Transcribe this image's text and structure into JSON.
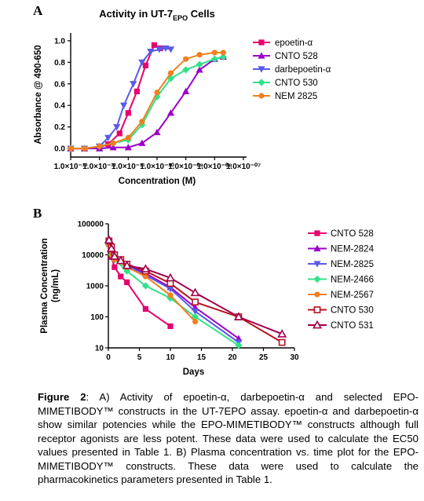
{
  "panel_a": {
    "letter": "A",
    "title_main": "Activity in UT-7",
    "title_sub": "EPO",
    "title_tail": " Cells"
  },
  "panel_b": {
    "letter": "B"
  },
  "caption": {
    "figure_label": "Figure 2",
    "text": ": A) Activity of epoetin-α, darbepoetin-α and selected EPO-MIMETIBODY™ constructs in the UT-7EPO assay. epoetin-α and darbepoetin-α show similar potencies while the EPO-MIMETIBODY™ constructs although full receptor agonists are less potent. These data were used to calculate the EC50 values presented in Table 1. B) Plasma concentration vs. time plot for the EPO-MIMETIBODY™ constructs. These data were used to calculate the pharmacokinetics parameters presented in Table 1."
  },
  "chart_data": [
    {
      "type": "line",
      "title": "Activity in UT-7EPO Cells",
      "xlabel": "Concentration (M)",
      "ylabel": "Absorbance @ 490-650",
      "xscale": "log",
      "xlim": [
        1e-13,
        1e-07
      ],
      "ylim": [
        -0.05,
        1.05
      ],
      "x_ticks": [
        "1.0×10⁻¹³",
        "1.0×10⁻¹²",
        "1.0×10⁻¹¹",
        "1.0×10⁻¹⁰",
        "1.0×10⁻⁰⁹",
        "1.0×10⁻⁰⁸",
        "1.0×10⁻⁰⁷"
      ],
      "y_ticks": [
        "0.0",
        "0.2",
        "0.4",
        "0.6",
        "0.8",
        "1.0"
      ],
      "legend_position": "top-right",
      "colors": {
        "epoetin": "#e6006e",
        "cnto528": "#9a00c8",
        "darbepoetin": "#5a5ae6",
        "cnto530": "#33e08a",
        "nem2825": "#f08020"
      },
      "series": [
        {
          "name": "epoetin-α",
          "key": "epoetin",
          "marker": "square",
          "x": [
            1e-13,
            3e-13,
            1e-12,
            2e-12,
            5e-12,
            1e-11,
            2e-11,
            4e-11,
            8e-11,
            1.3e-10
          ],
          "y": [
            0.0,
            0.0,
            0.01,
            0.04,
            0.14,
            0.33,
            0.53,
            0.77,
            0.96,
            0.93
          ]
        },
        {
          "name": "CNTO 528",
          "key": "cnto528",
          "marker": "triangle-up",
          "x": [
            1e-13,
            3e-13,
            1e-12,
            3e-12,
            1e-11,
            3e-11,
            1e-10,
            3e-10,
            1e-09,
            3e-09,
            1e-08,
            2e-08
          ],
          "y": [
            0.0,
            0.0,
            0.0,
            0.01,
            0.01,
            0.05,
            0.15,
            0.33,
            0.53,
            0.73,
            0.83,
            0.85
          ]
        },
        {
          "name": "darbepoetin-α",
          "key": "darbepoetin",
          "marker": "triangle-down",
          "x": [
            1e-13,
            3e-13,
            1e-12,
            2e-12,
            4e-12,
            7e-12,
            1.5e-11,
            3e-11,
            6e-11,
            1.2e-10,
            2e-10,
            3e-10
          ],
          "y": [
            0.0,
            0.0,
            0.02,
            0.1,
            0.2,
            0.4,
            0.6,
            0.8,
            0.9,
            0.92,
            0.93,
            0.92
          ]
        },
        {
          "name": "CNTO 530",
          "key": "cnto530",
          "marker": "diamond",
          "x": [
            1e-13,
            3e-13,
            1e-12,
            3e-12,
            1e-11,
            3e-11,
            1e-10,
            3e-10,
            1e-09,
            3e-09,
            1e-08,
            2e-08
          ],
          "y": [
            0.0,
            0.0,
            0.02,
            0.05,
            0.08,
            0.22,
            0.48,
            0.65,
            0.73,
            0.78,
            0.83,
            0.85
          ]
        },
        {
          "name": "NEM 2825",
          "key": "nem2825",
          "marker": "circle",
          "x": [
            1e-13,
            3e-13,
            1e-12,
            3e-12,
            1e-11,
            3e-11,
            1e-10,
            3e-10,
            1e-09,
            3e-09,
            1e-08,
            2e-08
          ],
          "y": [
            0.0,
            0.0,
            0.02,
            0.05,
            0.1,
            0.25,
            0.52,
            0.7,
            0.83,
            0.87,
            0.89,
            0.89
          ]
        }
      ]
    },
    {
      "type": "line",
      "title": "",
      "xlabel": "Days",
      "ylabel": "Plasma Concentration (ng/mL)",
      "yscale": "log",
      "xlim": [
        0,
        30
      ],
      "ylim": [
        10,
        100000
      ],
      "x_ticks": [
        "0",
        "5",
        "10",
        "15",
        "20",
        "25",
        "30"
      ],
      "y_ticks": [
        "10",
        "100",
        "1000",
        "10000",
        "100000"
      ],
      "legend_position": "right",
      "colors": {
        "cnto528": "#e6006e",
        "nem2824": "#9a00c8",
        "nem2825": "#5a5ae6",
        "nem2466": "#33e08a",
        "nem2567": "#f08020",
        "cnto530": "#b8131f",
        "cnto531": "#a0004a"
      },
      "series": [
        {
          "name": "CNTO 528",
          "key": "cnto528",
          "marker": "square",
          "x": [
            0.1,
            0.5,
            1,
            2,
            3,
            6,
            10
          ],
          "y": [
            22000,
            8500,
            4000,
            2000,
            1300,
            180,
            50
          ]
        },
        {
          "name": "NEM-2824",
          "key": "nem2824",
          "marker": "triangle-up",
          "x": [
            0.1,
            0.5,
            1,
            3,
            6,
            10,
            14,
            21
          ],
          "y": [
            25000,
            12000,
            8000,
            5000,
            2500,
            900,
            200,
            20
          ]
        },
        {
          "name": "NEM-2825",
          "key": "nem2825",
          "marker": "triangle-down",
          "x": [
            0.1,
            0.5,
            1,
            3,
            6,
            10,
            14,
            21
          ],
          "y": [
            24000,
            11000,
            7500,
            4500,
            2200,
            800,
            150,
            15
          ]
        },
        {
          "name": "NEM-2466",
          "key": "nem2466",
          "marker": "diamond",
          "x": [
            0.1,
            0.5,
            1,
            3,
            6,
            10,
            14,
            21
          ],
          "y": [
            20000,
            10000,
            7000,
            3000,
            1000,
            400,
            100,
            12
          ]
        },
        {
          "name": "NEM-2567",
          "key": "nem2567",
          "marker": "circle",
          "x": [
            0.1,
            0.5,
            1,
            3,
            6,
            10,
            14
          ],
          "y": [
            21000,
            10000,
            7000,
            4000,
            2000,
            500,
            70
          ]
        },
        {
          "name": "CNTO 530",
          "key": "cnto530",
          "marker": "square-open",
          "x": [
            0.1,
            0.5,
            1,
            2,
            3,
            6,
            10,
            14,
            21,
            28
          ],
          "y": [
            28000,
            18000,
            10000,
            7000,
            5000,
            3000,
            1200,
            300,
            100,
            15
          ]
        },
        {
          "name": "CNTO 531",
          "key": "cnto531",
          "marker": "triangle-open",
          "x": [
            0.1,
            0.5,
            1,
            2,
            3,
            6,
            10,
            14,
            21,
            28
          ],
          "y": [
            30000,
            16000,
            9000,
            6500,
            4500,
            3500,
            1800,
            600,
            100,
            28
          ]
        }
      ]
    }
  ]
}
